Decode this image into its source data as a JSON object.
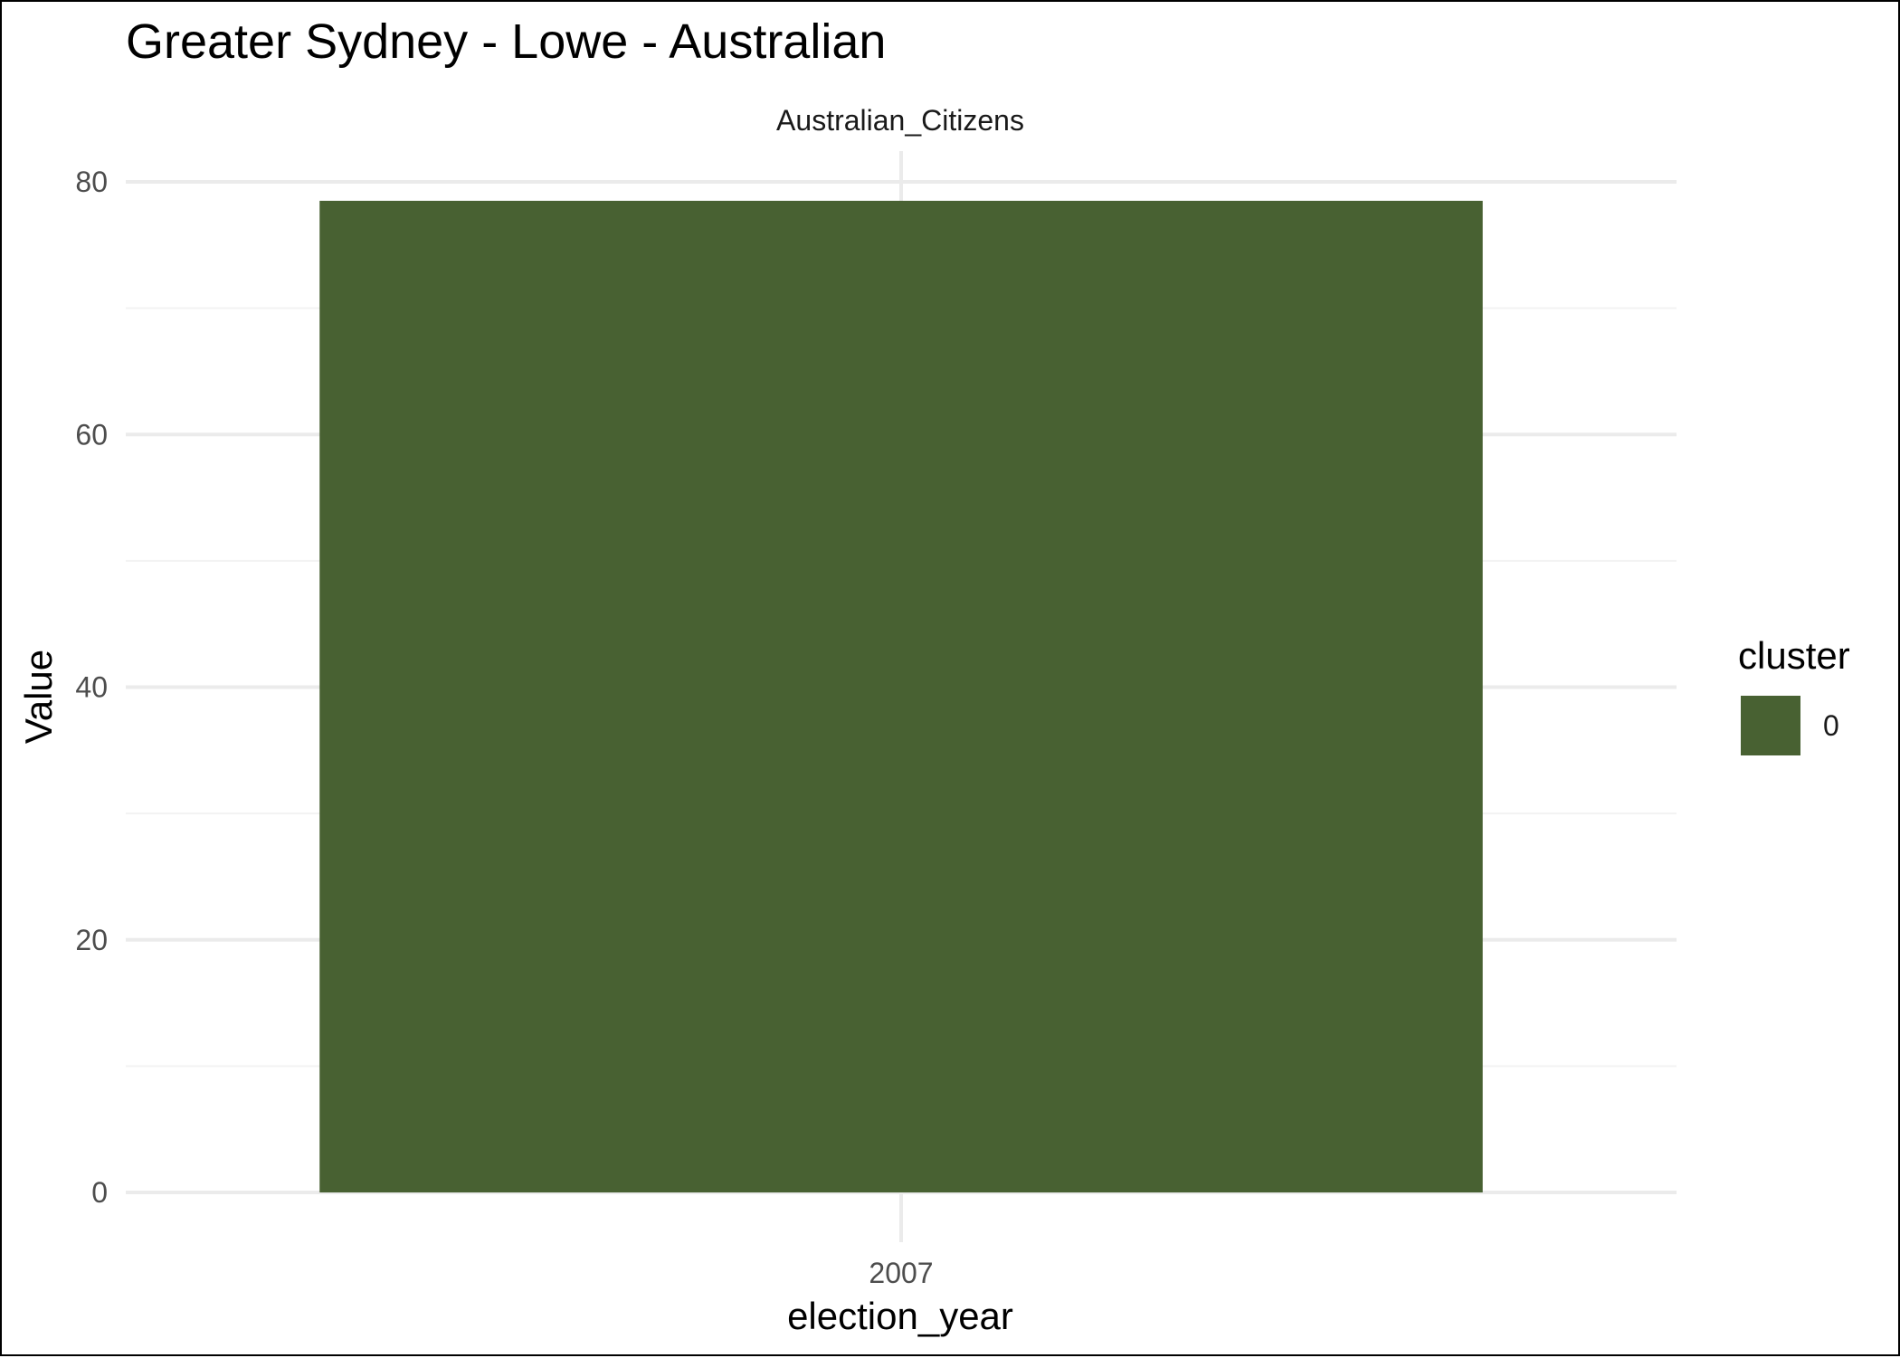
{
  "chart_data": {
    "type": "bar",
    "title": "Greater Sydney - Lowe - Australian",
    "facet_label": "Australian_Citizens",
    "xlabel": "election_year",
    "ylabel": "Value",
    "categories": [
      "2007"
    ],
    "series": [
      {
        "name": "0",
        "values": [
          78.5
        ]
      }
    ],
    "ylim": [
      0,
      80
    ],
    "y_ticks": [
      0,
      20,
      40,
      60,
      80
    ],
    "grid": true,
    "legend": {
      "title": "cluster",
      "position": "right",
      "entries": [
        "0"
      ]
    },
    "colors": {
      "bar": "#486132",
      "grid_major": "#ebebeb",
      "grid_minor": "#f3f3f3"
    }
  }
}
